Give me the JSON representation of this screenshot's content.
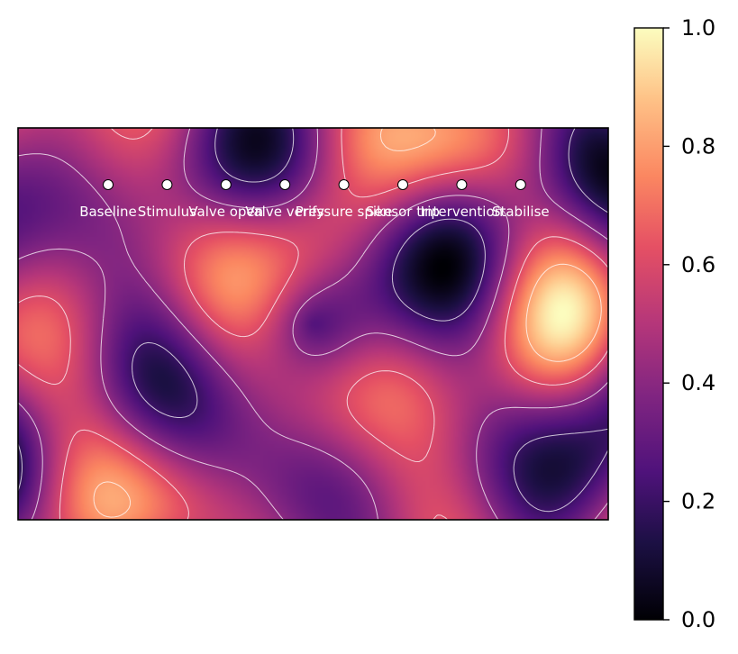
{
  "chart_data": {
    "type": "heatmap",
    "title": "",
    "xlabel": "",
    "ylabel": "",
    "colormap": "magma",
    "value_range": [
      0.0,
      1.0
    ],
    "contour_levels": [
      0.2,
      0.4,
      0.6,
      0.8
    ],
    "contour_color": "#ffffff",
    "axes_ticks_visible": false,
    "grid": false,
    "colorbar": {
      "placement": "right",
      "ticks": [
        "0.0",
        "0.2",
        "0.4",
        "0.6",
        "0.8",
        "1.0"
      ]
    },
    "annotations": [
      {
        "label": "Baseline"
      },
      {
        "label": "Stimulus"
      },
      {
        "label": "Valve open"
      },
      {
        "label": "Valve verify"
      },
      {
        "label": "Pressure spike"
      },
      {
        "label": "Sensor trip"
      },
      {
        "label": "Intervention"
      },
      {
        "label": "Stabilise"
      }
    ]
  }
}
